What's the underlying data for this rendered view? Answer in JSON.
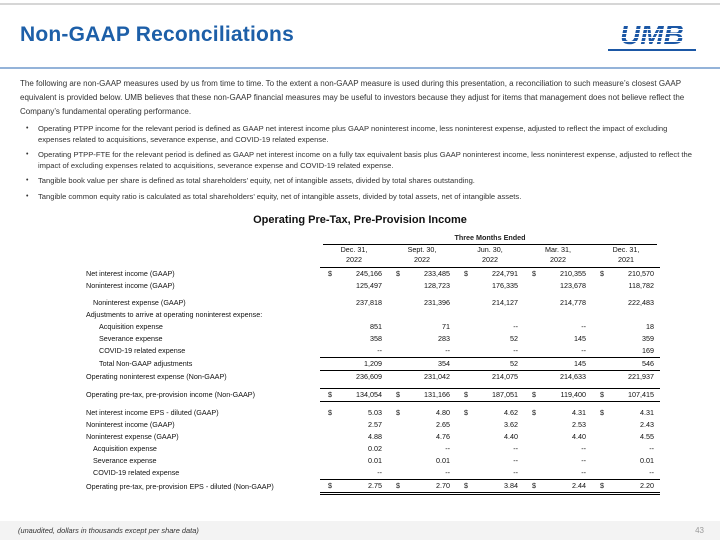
{
  "header": {
    "title": "Non-GAAP Reconciliations",
    "logo_text": "UMB"
  },
  "colors": {
    "title_blue": "#1d5fa8",
    "logo_blue": "#1b57a5",
    "divider_blue": "#94b3d9"
  },
  "bullet_marker": "•",
  "intro": "The following are non-GAAP measures used by us from time to time. To the extent a non-GAAP measure is used during this presentation, a reconciliation to such measure’s closest GAAP equivalent is provided below. UMB believes that these non-GAAP financial measures may be useful to investors because they adjust for items that management does not believe reflect the Company’s fundamental operating performance.",
  "bullets": [
    "Operating PTPP income for the relevant period is defined as GAAP net interest income plus GAAP noninterest income, less noninterest expense, adjusted to reflect the impact of excluding expenses related to acquisitions, severance expense, and COVID-19 related expense.",
    "Operating PTPP-FTE for the relevant period is defined as GAAP net interest income on a fully tax equivalent basis plus GAAP noninterest income, less noninterest expense, adjusted to reflect the impact of excluding expenses related to acquisitions, severance expense and COVID-19 related expense.",
    "Tangible book value per share is defined as total shareholders’ equity, net of intangible assets, divided by total shares outstanding.",
    "Tangible common equity ratio is calculated as total shareholders’ equity, net of intangible assets, divided by total assets, net of intangible assets."
  ],
  "table": {
    "title": "Operating Pre-Tax, Pre-Provision Income",
    "period_header": "Three Months Ended",
    "columns": [
      {
        "date": "Dec. 31,",
        "year": "2022"
      },
      {
        "date": "Sept. 30,",
        "year": "2022"
      },
      {
        "date": "Jun. 30,",
        "year": "2022"
      },
      {
        "date": "Mar. 31,",
        "year": "2022"
      },
      {
        "date": "Dec. 31,",
        "year": "2021"
      }
    ],
    "rows": [
      {
        "label": "Net interest income (GAAP)",
        "indent": 0,
        "dollar": true,
        "values": [
          "245,166",
          "233,485",
          "224,791",
          "210,355",
          "210,570"
        ]
      },
      {
        "label": "Noninterest income (GAAP)",
        "indent": 0,
        "dollar": false,
        "values": [
          "125,497",
          "128,723",
          "176,335",
          "123,678",
          "118,782"
        ]
      },
      {
        "spacer": true
      },
      {
        "label": "Noninterest expense (GAAP)",
        "indent": 1,
        "dollar": false,
        "values": [
          "237,818",
          "231,396",
          "214,127",
          "214,778",
          "222,483"
        ]
      },
      {
        "label": "Adjustments to arrive at operating noninterest expense:",
        "indent": 0,
        "dollar": false,
        "values": [
          "",
          "",
          "",
          "",
          ""
        ]
      },
      {
        "label": "Acquisition expense",
        "indent": 2,
        "dollar": false,
        "values": [
          "851",
          "71",
          "--",
          "--",
          "18"
        ]
      },
      {
        "label": "Severance expense",
        "indent": 2,
        "dollar": false,
        "values": [
          "358",
          "283",
          "52",
          "145",
          "359"
        ]
      },
      {
        "label": "COVID-19 related expense",
        "indent": 2,
        "dollar": false,
        "values": [
          "--",
          "--",
          "--",
          "--",
          "169"
        ]
      },
      {
        "label": "Total Non-GAAP adjustments",
        "indent": 2,
        "dollar": false,
        "top": true,
        "values": [
          "1,209",
          "354",
          "52",
          "145",
          "546"
        ]
      },
      {
        "label": "Operating noninterest expense (Non-GAAP)",
        "indent": 0,
        "dollar": false,
        "top": true,
        "values": [
          "236,609",
          "231,042",
          "214,075",
          "214,633",
          "221,937"
        ]
      },
      {
        "spacer": true
      },
      {
        "label": "Operating pre-tax, pre-provision income (Non-GAAP)",
        "indent": 0,
        "dollar": true,
        "top": true,
        "bottom": true,
        "values": [
          "134,054",
          "131,166",
          "187,051",
          "119,400",
          "107,415"
        ]
      },
      {
        "spacer": true
      },
      {
        "label": "Net interest income EPS - diluted (GAAP)",
        "indent": 0,
        "dollar": true,
        "values": [
          "5.03",
          "4.80",
          "4.62",
          "4.31",
          "4.31"
        ]
      },
      {
        "label": "Noninterest income (GAAP)",
        "indent": 0,
        "dollar": false,
        "values": [
          "2.57",
          "2.65",
          "3.62",
          "2.53",
          "2.43"
        ]
      },
      {
        "label": "Noninterest expense (GAAP)",
        "indent": 0,
        "dollar": false,
        "values": [
          "4.88",
          "4.76",
          "4.40",
          "4.40",
          "4.55"
        ]
      },
      {
        "label": "Acquisition expense",
        "indent": 1,
        "dollar": false,
        "values": [
          "0.02",
          "--",
          "--",
          "--",
          "--"
        ]
      },
      {
        "label": "Severance expense",
        "indent": 1,
        "dollar": false,
        "values": [
          "0.01",
          "0.01",
          "--",
          "--",
          "0.01"
        ]
      },
      {
        "label": "COVID-19 related expense",
        "indent": 1,
        "dollar": false,
        "values": [
          "--",
          "--",
          "--",
          "--",
          "--"
        ]
      },
      {
        "label": "Operating pre-tax, pre-provision EPS - diluted (Non-GAAP)",
        "indent": 0,
        "dollar": true,
        "top": true,
        "dbl": true,
        "values": [
          "2.75",
          "2.70",
          "3.84",
          "2.44",
          "2.20"
        ]
      }
    ]
  },
  "footer": {
    "note": "(unaudited, dollars in thousands except per share data)",
    "page": "43"
  }
}
